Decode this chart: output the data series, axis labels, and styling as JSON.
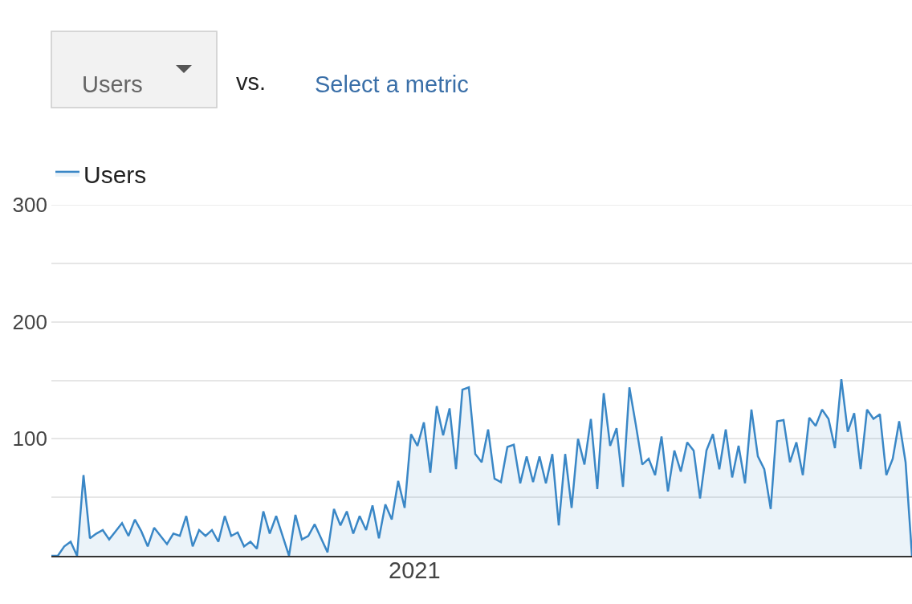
{
  "chart_data": {
    "type": "area",
    "annotations": [
      "Users",
      "vs.",
      "Select a metric",
      "2021"
    ],
    "categories": [
      null,
      null,
      null,
      null,
      null,
      null,
      null,
      null,
      null,
      null,
      null,
      null,
      null,
      null,
      null,
      null,
      null,
      null,
      null,
      null,
      null,
      null,
      null,
      null,
      null,
      null,
      null,
      null,
      null,
      null,
      null,
      null,
      null,
      null,
      null,
      null,
      null,
      null,
      null,
      null,
      null,
      null,
      null,
      null,
      null,
      null,
      null,
      null,
      null,
      null,
      null,
      null,
      null,
      null,
      null,
      null,
      null,
      null,
      null,
      null,
      null,
      null,
      null,
      null,
      null,
      null,
      null,
      null,
      null,
      null,
      null,
      null,
      null,
      null,
      null,
      null,
      null,
      null,
      null,
      null,
      null,
      null,
      null,
      null,
      null,
      null,
      null,
      null,
      null,
      null,
      null,
      null,
      null,
      null,
      null,
      null,
      null,
      null,
      null,
      null,
      null,
      null,
      null,
      null,
      null,
      null,
      null,
      null,
      null,
      null,
      null,
      null,
      null,
      null,
      null,
      null,
      null,
      null,
      null,
      null,
      null,
      null,
      null,
      null,
      null,
      null,
      null,
      null,
      null,
      null,
      null,
      null,
      null,
      null,
      null
    ],
    "series": [
      {
        "name": "Users",
        "color": "#3a87c6",
        "values": [
          0,
          0,
          8,
          12,
          0,
          69,
          15,
          19,
          22,
          14,
          21,
          28,
          17,
          31,
          21,
          8,
          24,
          17,
          10,
          19,
          17,
          34,
          8,
          22,
          17,
          22,
          12,
          34,
          17,
          20,
          8,
          12,
          6,
          38,
          19,
          34,
          17,
          0,
          35,
          14,
          17,
          27,
          15,
          3,
          40,
          26,
          38,
          19,
          34,
          22,
          43,
          15,
          44,
          31,
          64,
          41,
          104,
          94,
          114,
          71,
          128,
          103,
          126,
          74,
          142,
          144,
          87,
          80,
          108,
          66,
          63,
          93,
          95,
          62,
          85,
          63,
          85,
          62,
          87,
          26,
          87,
          41,
          100,
          78,
          117,
          57,
          139,
          94,
          109,
          59,
          144,
          112,
          78,
          83,
          69,
          102,
          55,
          90,
          72,
          97,
          90,
          49,
          90,
          104,
          74,
          108,
          67,
          94,
          62,
          125,
          85,
          74,
          40,
          115,
          116,
          80,
          97,
          69,
          118,
          111,
          125,
          117,
          92,
          151,
          106,
          122,
          74,
          125,
          117,
          121,
          69,
          83,
          115,
          80,
          0
        ]
      }
    ],
    "ylim": [
      0,
      300
    ],
    "yticks": [
      {
        "value": 0,
        "label": null
      },
      {
        "value": 50,
        "label": null
      },
      100,
      {
        "value": 150,
        "label": null
      },
      200,
      {
        "value": 250,
        "label": null
      },
      300
    ],
    "grid": "y",
    "legend": "top left"
  }
}
